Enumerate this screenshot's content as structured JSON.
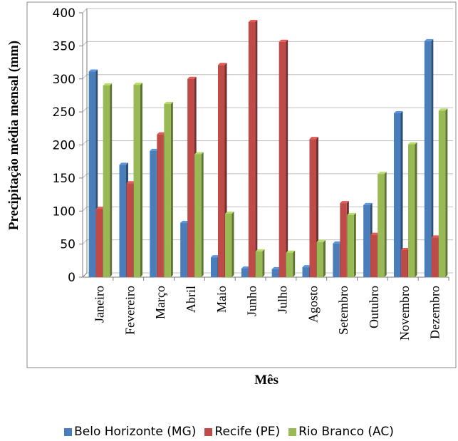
{
  "chart_data": {
    "type": "bar",
    "categories": [
      "Janeiro",
      "Fevereiro",
      "Março",
      "Abril",
      "Maio",
      "Junho",
      "Julho",
      "Agosto",
      "Setembro",
      "Outubro",
      "Novembro",
      "Dezembro"
    ],
    "series": [
      {
        "name": "Belo Horizonte (MG)",
        "color": "#4A7EBB",
        "values": [
          311,
          170,
          191,
          82,
          30,
          13,
          12,
          15,
          51,
          109,
          248,
          357
        ]
      },
      {
        "name": "Recife (PE)",
        "color": "#BE4B48",
        "values": [
          103,
          142,
          216,
          300,
          321,
          386,
          356,
          209,
          112,
          64,
          41,
          60
        ]
      },
      {
        "name": "Rio Branco (AC)",
        "color": "#98B954",
        "values": [
          290,
          291,
          262,
          186,
          96,
          39,
          37,
          53,
          94,
          156,
          201,
          252
        ]
      }
    ],
    "xlabel": "Mês",
    "ylabel": "Precipitação média mensal (mm)",
    "ylim": [
      0,
      400
    ],
    "yticks": [
      "0",
      "50",
      "100",
      "150",
      "200",
      "250",
      "300",
      "350",
      "400"
    ],
    "grid": "horizontal",
    "legend_position": "bottom"
  }
}
